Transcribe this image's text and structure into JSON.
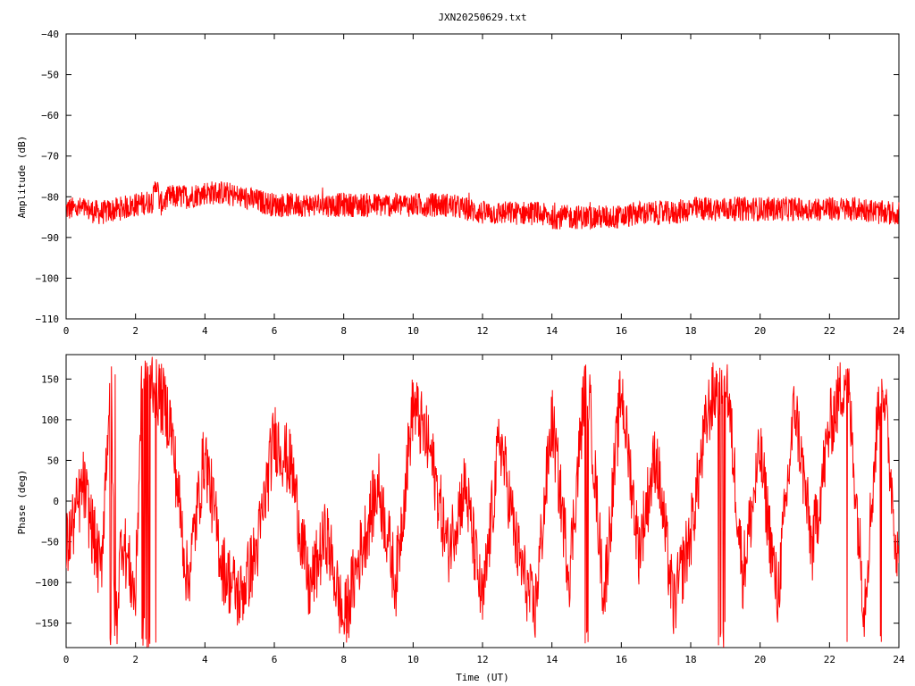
{
  "figure_title": "JXN20250629.txt",
  "colors": {
    "trace": "#ff0000",
    "axes": "#000000",
    "background": "#ffffff"
  },
  "chart_data": [
    {
      "type": "line",
      "title": "JXN20250629.txt",
      "xlabel": "",
      "ylabel": "Amplitude (dB)",
      "xlim": [
        0,
        24
      ],
      "ylim": [
        -110,
        -40
      ],
      "xticks": [
        "0",
        "2",
        "4",
        "6",
        "8",
        "10",
        "12",
        "14",
        "16",
        "18",
        "20",
        "22",
        "24"
      ],
      "yticks": [
        "-40",
        "-50",
        "-60",
        "-70",
        "-80",
        "-90",
        "-100",
        "-110"
      ],
      "grid": false,
      "legend": "none",
      "series": [
        {
          "x": [
            0,
            0.5,
            1,
            1.5,
            2,
            2.5,
            2.6,
            2.7,
            3,
            3.5,
            4,
            4.5,
            5,
            5.5,
            6,
            6.5,
            7,
            7.5,
            8,
            8.5,
            9,
            9.5,
            10,
            10.5,
            11,
            11.5,
            12,
            12.5,
            13,
            13.5,
            14,
            14.5,
            15,
            15.5,
            16,
            16.5,
            17,
            17.5,
            18,
            18.5,
            19,
            19.5,
            20,
            20.5,
            21,
            21.5,
            22,
            22.5,
            23,
            23.5,
            24
          ],
          "y": [
            -83,
            -83,
            -84,
            -83,
            -82,
            -81,
            -76,
            -82,
            -80,
            -80,
            -79,
            -79,
            -80,
            -81,
            -82,
            -82,
            -82,
            -82,
            -82,
            -82,
            -82,
            -82,
            -82,
            -82,
            -82,
            -83,
            -84,
            -84,
            -84,
            -84,
            -85,
            -85,
            -85,
            -85,
            -85,
            -84,
            -84,
            -84,
            -83,
            -83,
            -83,
            -83,
            -83,
            -83,
            -83,
            -83,
            -83,
            -83,
            -83,
            -84,
            -84
          ],
          "spread_db": 3
        }
      ]
    },
    {
      "type": "line",
      "xlabel": "Time (UT)",
      "ylabel": "Phase (deg)",
      "xlim": [
        0,
        24
      ],
      "ylim": [
        -180,
        180
      ],
      "xticks": [
        "0",
        "2",
        "4",
        "6",
        "8",
        "10",
        "12",
        "14",
        "16",
        "18",
        "20",
        "22",
        "24"
      ],
      "yticks": [
        "150",
        "100",
        "50",
        "0",
        "-50",
        "-100",
        "-150"
      ],
      "grid": false,
      "legend": "none",
      "series": [
        {
          "x": [
            0,
            0.5,
            1,
            1.3,
            1.4,
            1.6,
            2,
            2.2,
            2.5,
            3,
            3.5,
            4,
            4.5,
            5,
            5.5,
            6,
            6.5,
            7,
            7.5,
            8,
            8.5,
            9,
            9.5,
            10,
            10.5,
            11,
            11.5,
            12,
            12.5,
            13,
            13.5,
            14,
            14.5,
            15,
            15.5,
            16,
            16.5,
            17,
            17.5,
            18,
            18.5,
            19,
            19.5,
            20,
            20.5,
            21,
            21.5,
            22,
            22.5,
            23,
            23.5,
            24
          ],
          "y": [
            -60,
            20,
            -90,
            180,
            -180,
            -40,
            -120,
            180,
            150,
            100,
            -100,
            60,
            -80,
            -120,
            -60,
            80,
            40,
            -110,
            -40,
            -150,
            -60,
            20,
            -100,
            120,
            60,
            -60,
            20,
            -130,
            80,
            -60,
            -140,
            100,
            -90,
            170,
            -120,
            140,
            -60,
            60,
            -130,
            -40,
            110,
            170,
            -90,
            60,
            -120,
            120,
            -60,
            90,
            160,
            -130,
            170,
            -90
          ],
          "wrap_deg": 360,
          "noise_deg": 45
        }
      ]
    }
  ]
}
